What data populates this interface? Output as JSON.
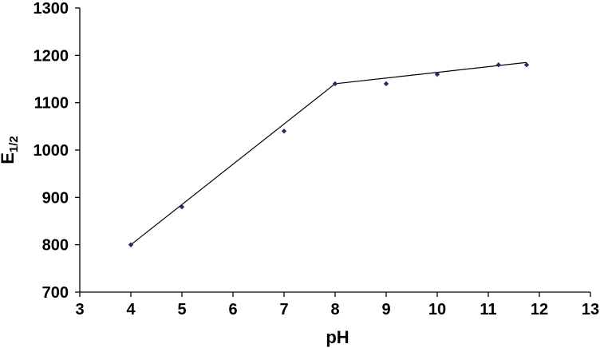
{
  "chart_data": {
    "type": "scatter",
    "title": "",
    "xlabel": "pH",
    "ylabel": "E",
    "ylabel_subscript": "1/2",
    "xlim": [
      3,
      13
    ],
    "ylim": [
      700,
      1300
    ],
    "xticks": [
      3,
      4,
      5,
      6,
      7,
      8,
      9,
      10,
      11,
      12,
      13
    ],
    "yticks": [
      700,
      800,
      900,
      1000,
      1100,
      1200,
      1300
    ],
    "grid": false,
    "legend": "none",
    "marker_color": "#2e2a5c",
    "line_color": "#000000",
    "points": [
      {
        "x": 4,
        "y": 800
      },
      {
        "x": 5,
        "y": 880
      },
      {
        "x": 7,
        "y": 1040
      },
      {
        "x": 8,
        "y": 1140
      },
      {
        "x": 9,
        "y": 1140
      },
      {
        "x": 10,
        "y": 1160
      },
      {
        "x": 11.2,
        "y": 1180
      },
      {
        "x": 11.75,
        "y": 1180
      }
    ],
    "fit_line": [
      {
        "x": 4,
        "y": 800
      },
      {
        "x": 8,
        "y": 1140
      },
      {
        "x": 11.75,
        "y": 1185
      }
    ]
  }
}
